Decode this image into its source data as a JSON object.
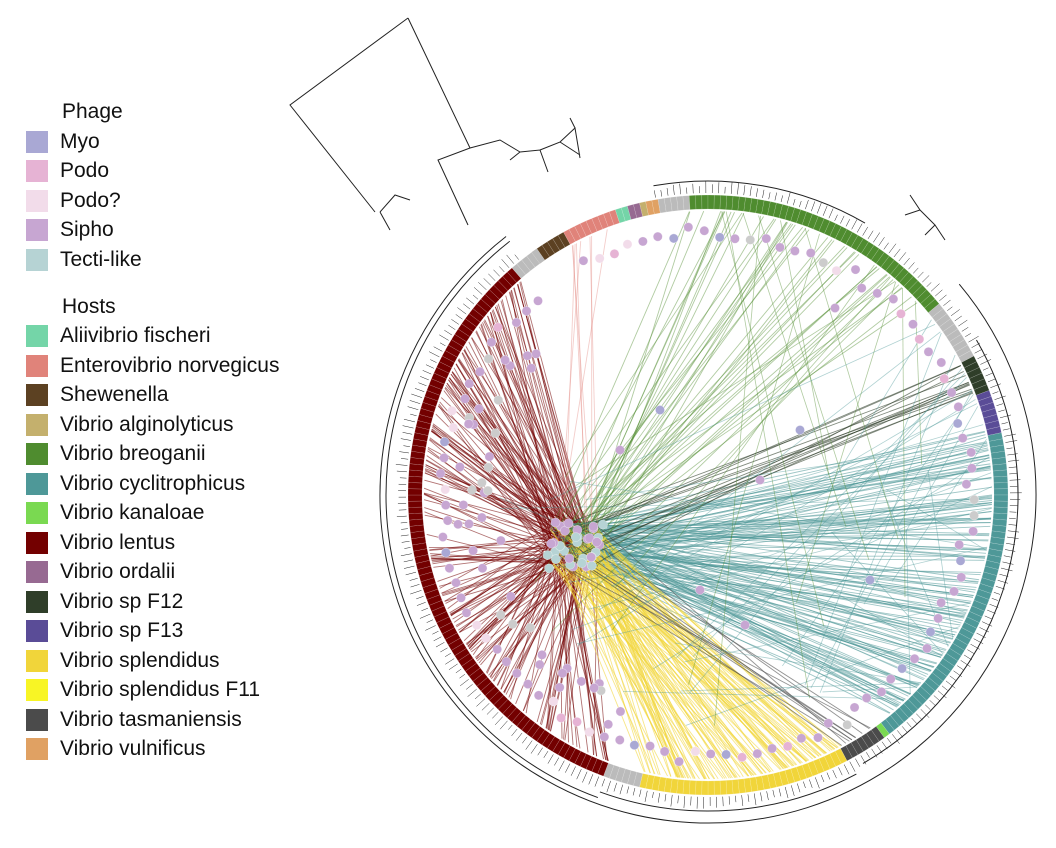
{
  "legend": {
    "phage": {
      "title": "Phage",
      "items": [
        {
          "label": "Myo",
          "color": "#a9a8d4"
        },
        {
          "label": "Podo",
          "color": "#e6b3d4"
        },
        {
          "label": "Podo?",
          "color": "#f2dcea"
        },
        {
          "label": "Sipho",
          "color": "#c7a6d2"
        },
        {
          "label": "Tecti-like",
          "color": "#b6d3d4"
        }
      ]
    },
    "hosts": {
      "title": "Hosts",
      "items": [
        {
          "label": "Aliivibrio fischeri",
          "color": "#74d5a8"
        },
        {
          "label": "Enterovibrio norvegicus",
          "color": "#e0837a"
        },
        {
          "label": "Shewenella",
          "color": "#5c4122"
        },
        {
          "label": "Vibrio alginolyticus",
          "color": "#c4b06d"
        },
        {
          "label": "Vibrio breoganii",
          "color": "#4f8c2f"
        },
        {
          "label": "Vibrio cyclitrophicus",
          "color": "#4e9898"
        },
        {
          "label": "Vibrio kanaloae",
          "color": "#7ad951"
        },
        {
          "label": "Vibrio lentus",
          "color": "#730000"
        },
        {
          "label": "Vibrio ordalii",
          "color": "#976a92"
        },
        {
          "label": "Vibrio sp F12",
          "color": "#2f3e29"
        },
        {
          "label": "Vibrio sp F13",
          "color": "#5a4c97"
        },
        {
          "label": "Vibrio splendidus",
          "color": "#f1d53a"
        },
        {
          "label": "Vibrio splendidus F11",
          "color": "#f8f525"
        },
        {
          "label": "Vibrio tasmaniensis",
          "color": "#4b4b4b"
        },
        {
          "label": "Vibrio vulnificus",
          "color": "#e0a163"
        }
      ]
    }
  },
  "colors": {
    "tree": "#222222",
    "unassigned_host": "#bbbbbb",
    "unassigned_node": "#cccccc"
  }
}
